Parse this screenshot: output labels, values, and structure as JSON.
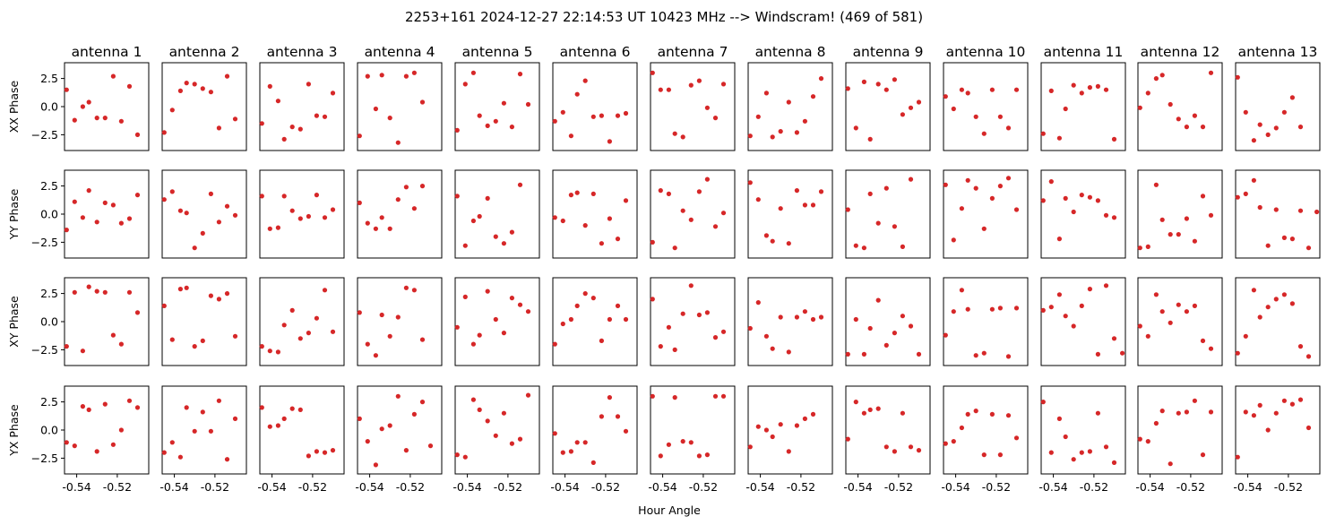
{
  "chart_data": {
    "type": "scatter",
    "title": "2253+161  2024-12-27 22:14:53 UT  10423 MHz  --> Windscram! (469 of 581)",
    "xlabel": "Hour Angle",
    "antennas": [
      "antenna 1",
      "antenna 2",
      "antenna 3",
      "antenna 4",
      "antenna 5",
      "antenna 6",
      "antenna 7",
      "antenna 8",
      "antenna 9",
      "antenna 10",
      "antenna 11",
      "antenna 12",
      "antenna 13"
    ],
    "rows": [
      "XX Phase",
      "YY Phase",
      "XY Phase",
      "YX Phase"
    ],
    "x_ticks": [
      -0.54,
      -0.52
    ],
    "x_tick_labels": [
      "-0.54",
      "-0.52"
    ],
    "y_ticks": [
      -2.5,
      0.0,
      2.5
    ],
    "y_tick_labels": [
      "−2.5",
      "0.0",
      "2.5"
    ],
    "xlim": [
      -0.546,
      -0.5045
    ],
    "ylim": [
      -3.9,
      3.9
    ],
    "marker_color": "#d62728",
    "x": [
      -0.545,
      -0.541,
      -0.537,
      -0.534,
      -0.53,
      -0.526,
      -0.522,
      -0.518,
      -0.514,
      -0.51,
      -0.506
    ],
    "phases": [
      [
        [
          1.5,
          -1.2,
          0.0,
          0.4,
          -1.0,
          -1.0,
          2.7,
          -1.3,
          1.8,
          -2.5
        ],
        [
          -2.3,
          -0.3,
          1.4,
          2.1,
          2.0,
          1.6,
          1.3,
          -1.9,
          2.7,
          -1.1
        ],
        [
          -1.5,
          1.8,
          0.5,
          -2.9,
          -1.8,
          -2.0,
          2.0,
          -0.8,
          -0.9,
          1.2
        ],
        [
          -2.6,
          2.7,
          -0.2,
          2.8,
          -1.0,
          -3.2,
          2.7,
          3.0,
          0.4
        ],
        [
          -2.1,
          2.0,
          3.0,
          -0.8,
          -1.7,
          -1.3,
          0.3,
          -1.8,
          2.9,
          0.2
        ],
        [
          -1.3,
          -0.5,
          -2.6,
          1.1,
          2.3,
          -0.9,
          -0.8,
          -3.1,
          -0.8,
          -0.6
        ],
        [
          3.0,
          1.5,
          1.5,
          -2.4,
          -2.7,
          1.9,
          2.3,
          -0.1,
          -1.0,
          2.0
        ],
        [
          -2.6,
          -0.9,
          1.2,
          -2.7,
          -2.2,
          0.4,
          -2.3,
          -1.3,
          0.9,
          2.5
        ],
        [
          1.6,
          -1.9,
          2.2,
          -2.9,
          2.0,
          1.5,
          2.4,
          -0.7,
          -0.1,
          0.4
        ],
        [
          0.9,
          -0.2,
          1.5,
          1.2,
          -0.9,
          -2.4,
          1.5,
          -0.9,
          -1.9,
          1.5
        ],
        [
          -2.4,
          1.4,
          -2.8,
          -0.2,
          1.9,
          1.2,
          1.7,
          1.8,
          1.5,
          -2.9
        ],
        [
          -0.1,
          1.2,
          2.5,
          2.8,
          0.2,
          -1.1,
          -1.8,
          -0.8,
          -1.8,
          3.0
        ],
        [
          2.6,
          -0.5,
          -3.0,
          -1.6,
          -2.5,
          -1.9,
          -0.5,
          0.8,
          -1.8
        ]
      ],
      [
        [
          -1.4,
          1.1,
          -0.3,
          2.1,
          -0.7,
          1.0,
          0.8,
          -0.8,
          -0.4,
          1.7
        ],
        [
          1.3,
          2.0,
          0.3,
          0.1,
          -3.0,
          -1.7,
          1.8,
          -0.7,
          0.7,
          -0.1
        ],
        [
          1.6,
          -1.3,
          -1.2,
          1.6,
          0.3,
          -0.4,
          -0.2,
          1.7,
          -0.3,
          0.4
        ],
        [
          1.0,
          -0.8,
          -1.3,
          -0.3,
          -1.3,
          1.3,
          2.4,
          0.5,
          2.5
        ],
        [
          1.6,
          -2.8,
          -0.6,
          -0.2,
          1.4,
          -2.0,
          -2.6,
          -1.6,
          2.6
        ],
        [
          -0.3,
          -0.6,
          1.7,
          1.9,
          -1.0,
          1.8,
          -2.6,
          -0.4,
          -2.2,
          1.2
        ],
        [
          -2.5,
          2.1,
          1.8,
          -3.0,
          0.3,
          -0.5,
          2.0,
          3.1,
          -1.1,
          0.1
        ],
        [
          2.8,
          1.3,
          -1.9,
          -2.4,
          0.5,
          -2.6,
          2.1,
          0.8,
          0.8,
          2.0
        ],
        [
          0.4,
          -2.8,
          -3.0,
          1.8,
          -0.8,
          2.3,
          -1.1,
          -2.9,
          3.1
        ],
        [
          2.6,
          -2.3,
          0.5,
          3.0,
          2.3,
          -1.3,
          1.4,
          2.5,
          3.2,
          0.4
        ],
        [
          1.2,
          2.9,
          -2.2,
          1.4,
          0.2,
          1.7,
          1.5,
          1.2,
          -0.1,
          -0.3
        ],
        [
          -3.0,
          -2.9,
          2.6,
          -0.5,
          -1.8,
          -1.8,
          -0.4,
          -2.4,
          1.6,
          -0.1
        ],
        [
          1.5,
          1.8,
          3.0,
          0.6,
          -2.8,
          0.4,
          -2.1,
          -2.2,
          0.3,
          -3.0,
          0.2
        ]
      ],
      [
        [
          -2.2,
          2.6,
          -2.6,
          3.1,
          2.7,
          2.6,
          -1.2,
          -2.0,
          2.6,
          0.8
        ],
        [
          1.4,
          -1.6,
          2.9,
          3.0,
          -2.2,
          -1.7,
          2.3,
          2.0,
          2.5,
          -1.3
        ],
        [
          -2.2,
          -2.6,
          -2.7,
          -0.3,
          1.0,
          -1.5,
          -1.0,
          0.3,
          2.8,
          -0.9
        ],
        [
          0.8,
          -2.0,
          -3.0,
          0.6,
          -1.3,
          0.4,
          3.0,
          2.8,
          -1.6
        ],
        [
          -0.5,
          2.2,
          -2.0,
          -1.2,
          2.7,
          0.2,
          -1.0,
          2.1,
          1.5,
          0.9
        ],
        [
          -2.0,
          -0.2,
          0.2,
          1.4,
          2.5,
          2.1,
          -1.7,
          0.2,
          1.4,
          0.2
        ],
        [
          2.0,
          -2.2,
          -0.5,
          -2.5,
          0.7,
          3.2,
          0.6,
          0.8,
          -1.4,
          -0.9
        ],
        [
          -0.6,
          1.7,
          -1.3,
          -2.4,
          0.4,
          -2.7,
          0.4,
          0.9,
          0.2,
          0.4
        ],
        [
          -2.9,
          0.2,
          -2.9,
          -0.6,
          1.9,
          -2.1,
          -1.0,
          0.5,
          -0.4,
          -2.9
        ],
        [
          -1.2,
          0.9,
          2.8,
          1.1,
          -3.0,
          -2.8,
          1.1,
          1.2,
          -3.1,
          1.2
        ],
        [
          1.0,
          1.3,
          2.4,
          0.5,
          -0.4,
          1.4,
          2.9,
          -2.9,
          3.2,
          -1.5,
          -2.8
        ],
        [
          -0.4,
          -1.3,
          2.4,
          0.9,
          -0.1,
          1.5,
          0.9,
          1.4,
          -1.7,
          -2.4
        ],
        [
          -2.8,
          -1.3,
          2.8,
          0.4,
          1.3,
          2.0,
          2.4,
          1.6,
          -2.2,
          -3.1
        ]
      ],
      [
        [
          -1.1,
          -1.4,
          2.1,
          1.8,
          -1.9,
          2.3,
          -1.3,
          0.0,
          2.6,
          2.0
        ],
        [
          -2.0,
          -1.1,
          -2.4,
          2.0,
          -0.1,
          1.6,
          -0.1,
          2.6,
          -2.6,
          1.0
        ],
        [
          2.0,
          0.3,
          0.4,
          1.0,
          1.9,
          1.8,
          -2.3,
          -1.9,
          -2.0,
          -1.8
        ],
        [
          1.0,
          -1.0,
          -3.1,
          0.1,
          0.4,
          3.0,
          -1.8,
          1.4,
          2.5,
          -1.4
        ],
        [
          -2.2,
          -2.4,
          2.7,
          1.8,
          0.8,
          -0.5,
          1.5,
          -1.2,
          -0.8,
          3.1
        ],
        [
          -0.3,
          -2.0,
          -1.9,
          -1.1,
          -1.1,
          -2.9,
          1.2,
          2.9,
          1.2,
          -0.1
        ],
        [
          3.0,
          -2.3,
          -1.3,
          2.9,
          -1.0,
          -1.1,
          -2.3,
          -2.2,
          3.0,
          3.0
        ],
        [
          -1.5,
          0.3,
          0.0,
          -0.6,
          0.5,
          -1.9,
          0.4,
          1.0,
          1.4
        ],
        [
          -0.8,
          2.5,
          1.5,
          1.8,
          1.9,
          -1.5,
          -1.9,
          1.5,
          -1.5,
          -1.8
        ],
        [
          -1.2,
          -1.0,
          0.2,
          1.4,
          1.7,
          -2.2,
          1.4,
          -2.2,
          1.3,
          -0.7
        ],
        [
          2.5,
          -2.0,
          1.0,
          -0.6,
          -2.6,
          -2.0,
          -1.9,
          1.5,
          -1.5,
          -2.9
        ],
        [
          -0.8,
          -1.0,
          0.6,
          1.7,
          -3.0,
          1.5,
          1.6,
          2.6,
          -2.2,
          1.6
        ],
        [
          -2.4,
          1.6,
          1.3,
          2.2,
          0.0,
          1.5,
          2.6,
          2.3,
          2.7,
          0.2
        ]
      ]
    ]
  }
}
